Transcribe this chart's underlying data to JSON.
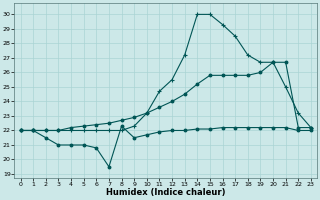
{
  "xlabel": "Humidex (Indice chaleur)",
  "bg_color": "#cce8e8",
  "grid_color": "#aad4d4",
  "line_color": "#005555",
  "xlim": [
    -0.5,
    23.5
  ],
  "ylim": [
    18.7,
    30.8
  ],
  "xticks": [
    0,
    1,
    2,
    3,
    4,
    5,
    6,
    7,
    8,
    9,
    10,
    11,
    12,
    13,
    14,
    15,
    16,
    17,
    18,
    19,
    20,
    21,
    22,
    23
  ],
  "yticks": [
    19,
    20,
    21,
    22,
    23,
    24,
    25,
    26,
    27,
    28,
    29,
    30
  ],
  "line1_x": [
    0,
    1,
    2,
    3,
    4,
    5,
    6,
    7,
    8,
    9,
    10,
    11,
    12,
    13,
    14,
    15,
    16,
    17,
    18,
    19,
    20,
    21,
    22,
    23
  ],
  "line1_y": [
    22.0,
    22.0,
    21.5,
    21.0,
    21.0,
    21.0,
    20.8,
    19.5,
    22.3,
    21.5,
    21.7,
    21.9,
    22.0,
    22.0,
    22.1,
    22.1,
    22.2,
    22.2,
    22.2,
    22.2,
    22.2,
    22.2,
    22.0,
    22.0
  ],
  "line2_x": [
    0,
    1,
    2,
    3,
    4,
    5,
    6,
    7,
    8,
    9,
    10,
    11,
    12,
    13,
    14,
    15,
    16,
    17,
    18,
    19,
    20,
    21,
    22,
    23
  ],
  "line2_y": [
    22.0,
    22.0,
    22.0,
    22.0,
    22.0,
    22.0,
    22.0,
    22.0,
    22.0,
    22.3,
    23.2,
    24.7,
    25.5,
    27.2,
    30.0,
    30.0,
    29.3,
    28.5,
    27.2,
    26.7,
    26.7,
    25.0,
    23.2,
    22.2
  ],
  "line3_x": [
    0,
    1,
    2,
    3,
    4,
    5,
    6,
    7,
    8,
    9,
    10,
    11,
    12,
    13,
    14,
    15,
    16,
    17,
    18,
    19,
    20,
    21,
    22,
    23
  ],
  "line3_y": [
    22.0,
    22.0,
    22.0,
    22.0,
    22.2,
    22.3,
    22.4,
    22.5,
    22.7,
    22.9,
    23.2,
    23.6,
    24.0,
    24.5,
    25.2,
    25.8,
    25.8,
    25.8,
    25.8,
    26.0,
    26.7,
    26.7,
    22.2,
    22.2
  ]
}
